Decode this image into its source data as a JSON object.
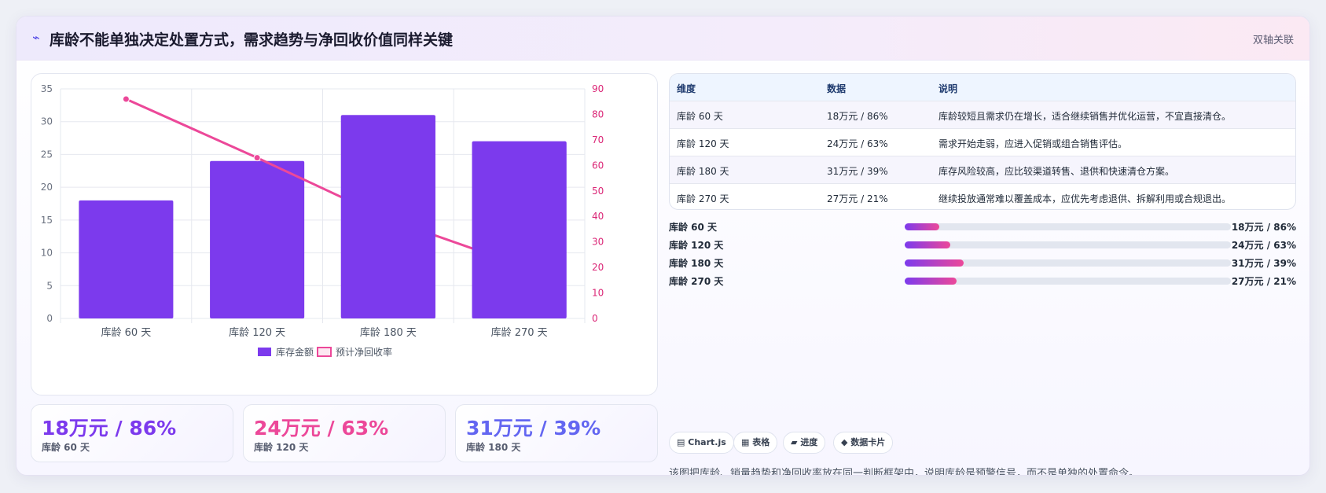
{
  "header": {
    "icon": "pulse-icon",
    "title": "库龄不能单独决定处置方式，需求趋势与净回收价值同样关键",
    "tag": "双轴关联"
  },
  "chart_data": {
    "type": "bar",
    "categories": [
      "库龄 60 天",
      "库龄 120 天",
      "库龄 180 天",
      "库龄 270 天"
    ],
    "series": [
      {
        "name": "库存金额",
        "type": "bar",
        "axis": "left",
        "color": "#7c3aed",
        "values": [
          18,
          24,
          31,
          27
        ]
      },
      {
        "name": "预计净回收率",
        "type": "line",
        "axis": "right",
        "color": "#ec4899",
        "values": [
          86,
          63,
          39,
          21
        ]
      }
    ],
    "y_left": {
      "min": 0,
      "max": 35,
      "ticks": [
        0,
        5,
        10,
        15,
        20,
        25,
        30,
        35
      ]
    },
    "y_right": {
      "min": 0,
      "max": 90,
      "ticks": [
        0,
        10,
        20,
        30,
        40,
        50,
        60,
        70,
        80,
        90
      ]
    },
    "grid": true,
    "legend": "bottom"
  },
  "stats": [
    {
      "value": "18万元 / 86%",
      "label": "库龄 60 天",
      "color": "#7c3aed"
    },
    {
      "value": "24万元 / 63%",
      "label": "库龄 120 天",
      "color": "#ec4899"
    },
    {
      "value": "31万元 / 39%",
      "label": "库龄 180 天",
      "color": "#6366f1"
    }
  ],
  "table": {
    "headers": [
      "维度",
      "数据",
      "说明"
    ],
    "rows": [
      [
        "库龄 60 天",
        "18万元 / 86%",
        "库龄较短且需求仍在增长，适合继续销售并优化运营，不宜直接清仓。"
      ],
      [
        "库龄 120 天",
        "24万元 / 63%",
        "需求开始走弱，应进入促销或组合销售评估。"
      ],
      [
        "库龄 180 天",
        "31万元 / 39%",
        "库存风险较高，应比较渠道转售、退供和快速清仓方案。"
      ],
      [
        "库龄 270 天",
        "27万元 / 21%",
        "继续投放通常难以覆盖成本，应优先考虑退供、拆解利用或合规退出。"
      ]
    ]
  },
  "progress": [
    {
      "label": "库龄 60 天",
      "value": "18万元 / 86%",
      "fraction": 0.105
    },
    {
      "label": "库龄 120 天",
      "value": "24万元 / 63%",
      "fraction": 0.14
    },
    {
      "label": "库龄 180 天",
      "value": "31万元 / 39%",
      "fraction": 0.18
    },
    {
      "label": "库龄 270 天",
      "value": "27万元 / 21%",
      "fraction": 0.158
    }
  ],
  "chips": [
    {
      "icon": "chart-icon",
      "glyph": "▤",
      "label": "Chart.js"
    },
    {
      "icon": "table-icon",
      "glyph": "▦",
      "label": "表格"
    },
    {
      "icon": "progress-icon",
      "glyph": "▰",
      "label": "进度"
    },
    {
      "icon": "card-icon",
      "glyph": "◆",
      "label": "数据卡片"
    }
  ],
  "footer": "该图把库龄、销量趋势和净回收率放在同一判断框架中，说明库龄是预警信号，而不是单独的处置命令。"
}
